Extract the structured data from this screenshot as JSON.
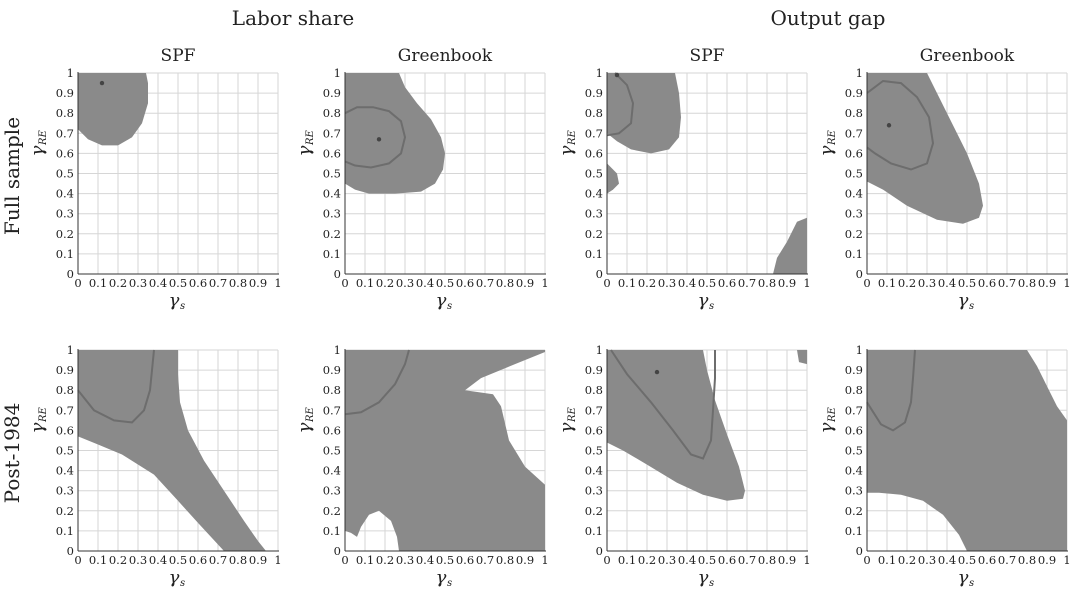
{
  "figure": {
    "group_titles": [
      "Labor share",
      "Output gap"
    ],
    "row_titles": [
      "Full sample",
      "Post-1984"
    ]
  },
  "colors": {
    "region": "#8a8a8a",
    "contour": "#6d6d6d",
    "grid": "#d6d6d6",
    "axis": "#333333",
    "point": "#444444"
  },
  "chart_data": [
    {
      "type": "contour",
      "title": "SPF",
      "group": "Labor share",
      "row": "Full sample",
      "xlabel": "γ",
      "xlabel_sub": "s",
      "ylabel": "γ",
      "ylabel_sub": "RE",
      "xlim": [
        0,
        1
      ],
      "ylim": [
        0,
        1
      ],
      "x_ticks": [
        0,
        0.1,
        0.2,
        0.3,
        0.4,
        0.5,
        0.6,
        0.7,
        0.8,
        0.9,
        1
      ],
      "y_ticks": [
        0,
        0.1,
        0.2,
        0.3,
        0.4,
        0.5,
        0.6,
        0.7,
        0.8,
        0.9,
        1
      ],
      "grid": true,
      "estimate": [
        0.12,
        0.95
      ],
      "regions": [
        [
          [
            0,
            1
          ],
          [
            0,
            0.72
          ],
          [
            0.05,
            0.67
          ],
          [
            0.12,
            0.64
          ],
          [
            0.2,
            0.64
          ],
          [
            0.27,
            0.68
          ],
          [
            0.32,
            0.75
          ],
          [
            0.35,
            0.85
          ],
          [
            0.35,
            0.95
          ],
          [
            0.34,
            1
          ]
        ]
      ],
      "contours": []
    },
    {
      "type": "contour",
      "title": "Greenbook",
      "group": "Labor share",
      "row": "Full sample",
      "xlabel": "γ",
      "xlabel_sub": "s",
      "ylabel": "γ",
      "ylabel_sub": "RE",
      "xlim": [
        0,
        1
      ],
      "ylim": [
        0,
        1
      ],
      "x_ticks": [
        0,
        0.1,
        0.2,
        0.3,
        0.4,
        0.5,
        0.6,
        0.7,
        0.8,
        0.9,
        1
      ],
      "y_ticks": [
        0,
        0.1,
        0.2,
        0.3,
        0.4,
        0.5,
        0.6,
        0.7,
        0.8,
        0.9,
        1
      ],
      "grid": true,
      "estimate": [
        0.17,
        0.67
      ],
      "regions": [
        [
          [
            0,
            1
          ],
          [
            0.27,
            1
          ],
          [
            0.3,
            0.93
          ],
          [
            0.36,
            0.85
          ],
          [
            0.43,
            0.77
          ],
          [
            0.48,
            0.68
          ],
          [
            0.5,
            0.6
          ],
          [
            0.49,
            0.52
          ],
          [
            0.45,
            0.45
          ],
          [
            0.38,
            0.41
          ],
          [
            0.25,
            0.4
          ],
          [
            0.12,
            0.4
          ],
          [
            0.05,
            0.42
          ],
          [
            0,
            0.45
          ]
        ]
      ],
      "contours": [
        [
          [
            0,
            0.8
          ],
          [
            0.06,
            0.83
          ],
          [
            0.14,
            0.83
          ],
          [
            0.22,
            0.81
          ],
          [
            0.28,
            0.76
          ],
          [
            0.3,
            0.68
          ],
          [
            0.28,
            0.6
          ],
          [
            0.22,
            0.55
          ],
          [
            0.13,
            0.53
          ],
          [
            0.05,
            0.54
          ],
          [
            0,
            0.56
          ]
        ]
      ]
    },
    {
      "type": "contour",
      "title": "SPF",
      "group": "Output gap",
      "row": "Full sample",
      "xlabel": "γ",
      "xlabel_sub": "s",
      "ylabel": "γ",
      "ylabel_sub": "RE",
      "xlim": [
        0,
        1
      ],
      "ylim": [
        0,
        1
      ],
      "x_ticks": [
        0,
        0.1,
        0.2,
        0.3,
        0.4,
        0.5,
        0.6,
        0.7,
        0.8,
        0.9,
        1
      ],
      "y_ticks": [
        0,
        0.1,
        0.2,
        0.3,
        0.4,
        0.5,
        0.6,
        0.7,
        0.8,
        0.9,
        1
      ],
      "grid": true,
      "estimate": [
        0.05,
        0.99
      ],
      "regions": [
        [
          [
            0,
            1
          ],
          [
            0.34,
            1
          ],
          [
            0.36,
            0.9
          ],
          [
            0.37,
            0.78
          ],
          [
            0.36,
            0.68
          ],
          [
            0.31,
            0.62
          ],
          [
            0.22,
            0.6
          ],
          [
            0.12,
            0.62
          ],
          [
            0.05,
            0.66
          ],
          [
            0,
            0.7
          ]
        ],
        [
          [
            0,
            0.55
          ],
          [
            0.05,
            0.5
          ],
          [
            0.06,
            0.45
          ],
          [
            0.03,
            0.42
          ],
          [
            0,
            0.4
          ]
        ],
        [
          [
            0.83,
            0
          ],
          [
            1,
            0
          ],
          [
            1,
            0.28
          ],
          [
            0.95,
            0.26
          ],
          [
            0.9,
            0.16
          ],
          [
            0.85,
            0.08
          ]
        ]
      ],
      "contours": [
        [
          [
            0.04,
            1
          ],
          [
            0.1,
            0.94
          ],
          [
            0.13,
            0.85
          ],
          [
            0.12,
            0.75
          ],
          [
            0.06,
            0.7
          ],
          [
            0,
            0.69
          ]
        ]
      ]
    },
    {
      "type": "contour",
      "title": "Greenbook",
      "group": "Output gap",
      "row": "Full sample",
      "xlabel": "γ",
      "xlabel_sub": "s",
      "ylabel": "γ",
      "ylabel_sub": "RE",
      "xlim": [
        0,
        1
      ],
      "ylim": [
        0,
        1
      ],
      "x_ticks": [
        0,
        0.1,
        0.2,
        0.3,
        0.4,
        0.5,
        0.6,
        0.7,
        0.8,
        0.9,
        1
      ],
      "y_ticks": [
        0,
        0.1,
        0.2,
        0.3,
        0.4,
        0.5,
        0.6,
        0.7,
        0.8,
        0.9,
        1
      ],
      "grid": true,
      "estimate": [
        0.11,
        0.74
      ],
      "regions": [
        [
          [
            0,
            1
          ],
          [
            0.3,
            1
          ],
          [
            0.35,
            0.9
          ],
          [
            0.42,
            0.76
          ],
          [
            0.5,
            0.6
          ],
          [
            0.56,
            0.45
          ],
          [
            0.58,
            0.34
          ],
          [
            0.56,
            0.28
          ],
          [
            0.48,
            0.25
          ],
          [
            0.35,
            0.27
          ],
          [
            0.2,
            0.34
          ],
          [
            0.08,
            0.42
          ],
          [
            0,
            0.46
          ]
        ]
      ],
      "contours": [
        [
          [
            0,
            0.9
          ],
          [
            0.08,
            0.96
          ],
          [
            0.17,
            0.95
          ],
          [
            0.25,
            0.88
          ],
          [
            0.31,
            0.78
          ],
          [
            0.33,
            0.65
          ],
          [
            0.3,
            0.55
          ],
          [
            0.22,
            0.52
          ],
          [
            0.12,
            0.55
          ],
          [
            0.04,
            0.6
          ],
          [
            0,
            0.63
          ]
        ]
      ]
    },
    {
      "type": "contour",
      "title": "",
      "group": "Labor share",
      "row": "Post-1984",
      "xlabel": "γ",
      "xlabel_sub": "s",
      "ylabel": "γ",
      "ylabel_sub": "RE",
      "xlim": [
        0,
        1
      ],
      "ylim": [
        0,
        1
      ],
      "x_ticks": [
        0,
        0.1,
        0.2,
        0.3,
        0.4,
        0.5,
        0.6,
        0.7,
        0.8,
        0.9,
        1
      ],
      "y_ticks": [
        0,
        0.1,
        0.2,
        0.3,
        0.4,
        0.5,
        0.6,
        0.7,
        0.8,
        0.9,
        1
      ],
      "grid": true,
      "estimate": null,
      "regions": [
        [
          [
            0,
            1
          ],
          [
            0.5,
            1
          ],
          [
            0.5,
            0.88
          ],
          [
            0.51,
            0.74
          ],
          [
            0.55,
            0.6
          ],
          [
            0.63,
            0.45
          ],
          [
            0.73,
            0.3
          ],
          [
            0.83,
            0.15
          ],
          [
            0.9,
            0.05
          ],
          [
            0.94,
            0
          ],
          [
            0.73,
            0
          ],
          [
            0.6,
            0.14
          ],
          [
            0.5,
            0.25
          ],
          [
            0.38,
            0.38
          ],
          [
            0.22,
            0.48
          ],
          [
            0.1,
            0.53
          ],
          [
            0,
            0.57
          ]
        ]
      ],
      "contours": [
        [
          [
            0,
            0.8
          ],
          [
            0.08,
            0.7
          ],
          [
            0.18,
            0.65
          ],
          [
            0.27,
            0.64
          ],
          [
            0.33,
            0.7
          ],
          [
            0.36,
            0.8
          ],
          [
            0.37,
            0.9
          ],
          [
            0.38,
            1
          ]
        ]
      ]
    },
    {
      "type": "contour",
      "title": "",
      "group": "Labor share",
      "row": "Post-1984",
      "xlabel": "γ",
      "xlabel_sub": "s",
      "ylabel": "γ",
      "ylabel_sub": "RE",
      "xlim": [
        0,
        1
      ],
      "ylim": [
        0,
        1
      ],
      "x_ticks": [
        0,
        0.1,
        0.2,
        0.3,
        0.4,
        0.5,
        0.6,
        0.7,
        0.8,
        0.9,
        1
      ],
      "y_ticks": [
        0,
        0.1,
        0.2,
        0.3,
        0.4,
        0.5,
        0.6,
        0.7,
        0.8,
        0.9,
        1
      ],
      "grid": true,
      "estimate": null,
      "regions": [
        [
          [
            0,
            1
          ],
          [
            1,
            1
          ],
          [
            1,
            0.99
          ],
          [
            0.85,
            0.93
          ],
          [
            0.68,
            0.86
          ],
          [
            0.6,
            0.8
          ],
          [
            0.74,
            0.78
          ],
          [
            0.78,
            0.72
          ],
          [
            0.82,
            0.55
          ],
          [
            0.9,
            0.42
          ],
          [
            1,
            0.33
          ],
          [
            1,
            0
          ],
          [
            0.27,
            0
          ],
          [
            0.26,
            0.07
          ],
          [
            0.23,
            0.15
          ],
          [
            0.17,
            0.2
          ],
          [
            0.12,
            0.18
          ],
          [
            0.08,
            0.12
          ],
          [
            0.06,
            0.07
          ],
          [
            0.03,
            0.09
          ],
          [
            0,
            0.1
          ]
        ]
      ],
      "contours": [
        [
          [
            0,
            0.68
          ],
          [
            0.08,
            0.69
          ],
          [
            0.17,
            0.74
          ],
          [
            0.25,
            0.83
          ],
          [
            0.3,
            0.93
          ],
          [
            0.32,
            1
          ]
        ]
      ]
    },
    {
      "type": "contour",
      "title": "",
      "group": "Output gap",
      "row": "Post-1984",
      "xlabel": "γ",
      "xlabel_sub": "s",
      "ylabel": "γ",
      "ylabel_sub": "RE",
      "xlim": [
        0,
        1
      ],
      "ylim": [
        0,
        1
      ],
      "x_ticks": [
        0,
        0.1,
        0.2,
        0.3,
        0.4,
        0.5,
        0.6,
        0.7,
        0.8,
        0.9,
        1
      ],
      "y_ticks": [
        0,
        0.1,
        0.2,
        0.3,
        0.4,
        0.5,
        0.6,
        0.7,
        0.8,
        0.9,
        1
      ],
      "grid": true,
      "estimate": [
        0.25,
        0.89
      ],
      "regions": [
        [
          [
            0,
            1
          ],
          [
            0.48,
            1
          ],
          [
            0.5,
            0.9
          ],
          [
            0.54,
            0.75
          ],
          [
            0.6,
            0.58
          ],
          [
            0.66,
            0.42
          ],
          [
            0.69,
            0.3
          ],
          [
            0.68,
            0.26
          ],
          [
            0.6,
            0.25
          ],
          [
            0.48,
            0.28
          ],
          [
            0.35,
            0.34
          ],
          [
            0.2,
            0.43
          ],
          [
            0.08,
            0.5
          ],
          [
            0,
            0.54
          ]
        ],
        [
          [
            0.95,
            1
          ],
          [
            1,
            1
          ],
          [
            1,
            0.93
          ],
          [
            0.96,
            0.94
          ]
        ]
      ],
      "contours": [
        [
          [
            0.02,
            1
          ],
          [
            0.1,
            0.88
          ],
          [
            0.22,
            0.74
          ],
          [
            0.33,
            0.6
          ],
          [
            0.42,
            0.48
          ],
          [
            0.48,
            0.46
          ],
          [
            0.52,
            0.55
          ],
          [
            0.53,
            0.7
          ],
          [
            0.54,
            0.86
          ],
          [
            0.54,
            1
          ]
        ]
      ]
    },
    {
      "type": "contour",
      "title": "",
      "group": "Output gap",
      "row": "Post-1984",
      "xlabel": "γ",
      "xlabel_sub": "s",
      "ylabel": "γ",
      "ylabel_sub": "RE",
      "xlim": [
        0,
        1
      ],
      "ylim": [
        0,
        1
      ],
      "x_ticks": [
        0,
        0.1,
        0.2,
        0.3,
        0.4,
        0.5,
        0.6,
        0.7,
        0.8,
        0.9,
        1
      ],
      "y_ticks": [
        0,
        0.1,
        0.2,
        0.3,
        0.4,
        0.5,
        0.6,
        0.7,
        0.8,
        0.9,
        1
      ],
      "grid": true,
      "estimate": null,
      "regions": [
        [
          [
            0,
            1
          ],
          [
            0.8,
            1
          ],
          [
            0.85,
            0.92
          ],
          [
            0.9,
            0.82
          ],
          [
            0.95,
            0.72
          ],
          [
            1,
            0.65
          ],
          [
            1,
            0
          ],
          [
            0.5,
            0
          ],
          [
            0.46,
            0.08
          ],
          [
            0.38,
            0.18
          ],
          [
            0.28,
            0.25
          ],
          [
            0.17,
            0.28
          ],
          [
            0.06,
            0.29
          ],
          [
            0,
            0.29
          ]
        ]
      ],
      "contours": [
        [
          [
            0,
            0.74
          ],
          [
            0.07,
            0.63
          ],
          [
            0.13,
            0.6
          ],
          [
            0.19,
            0.64
          ],
          [
            0.22,
            0.74
          ],
          [
            0.23,
            0.86
          ],
          [
            0.24,
            1
          ]
        ]
      ]
    }
  ]
}
